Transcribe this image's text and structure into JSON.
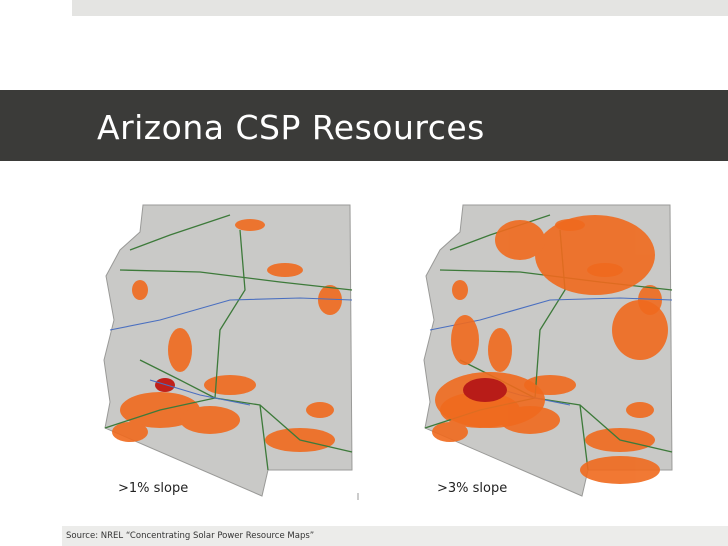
{
  "header": {
    "title": "Arizona CSP Resources"
  },
  "maps": [
    {
      "caption": ">1% slope"
    },
    {
      "caption": ">3% slope"
    }
  ],
  "source": "Source: NREL “Concentrating Solar Power Resource Maps”"
}
